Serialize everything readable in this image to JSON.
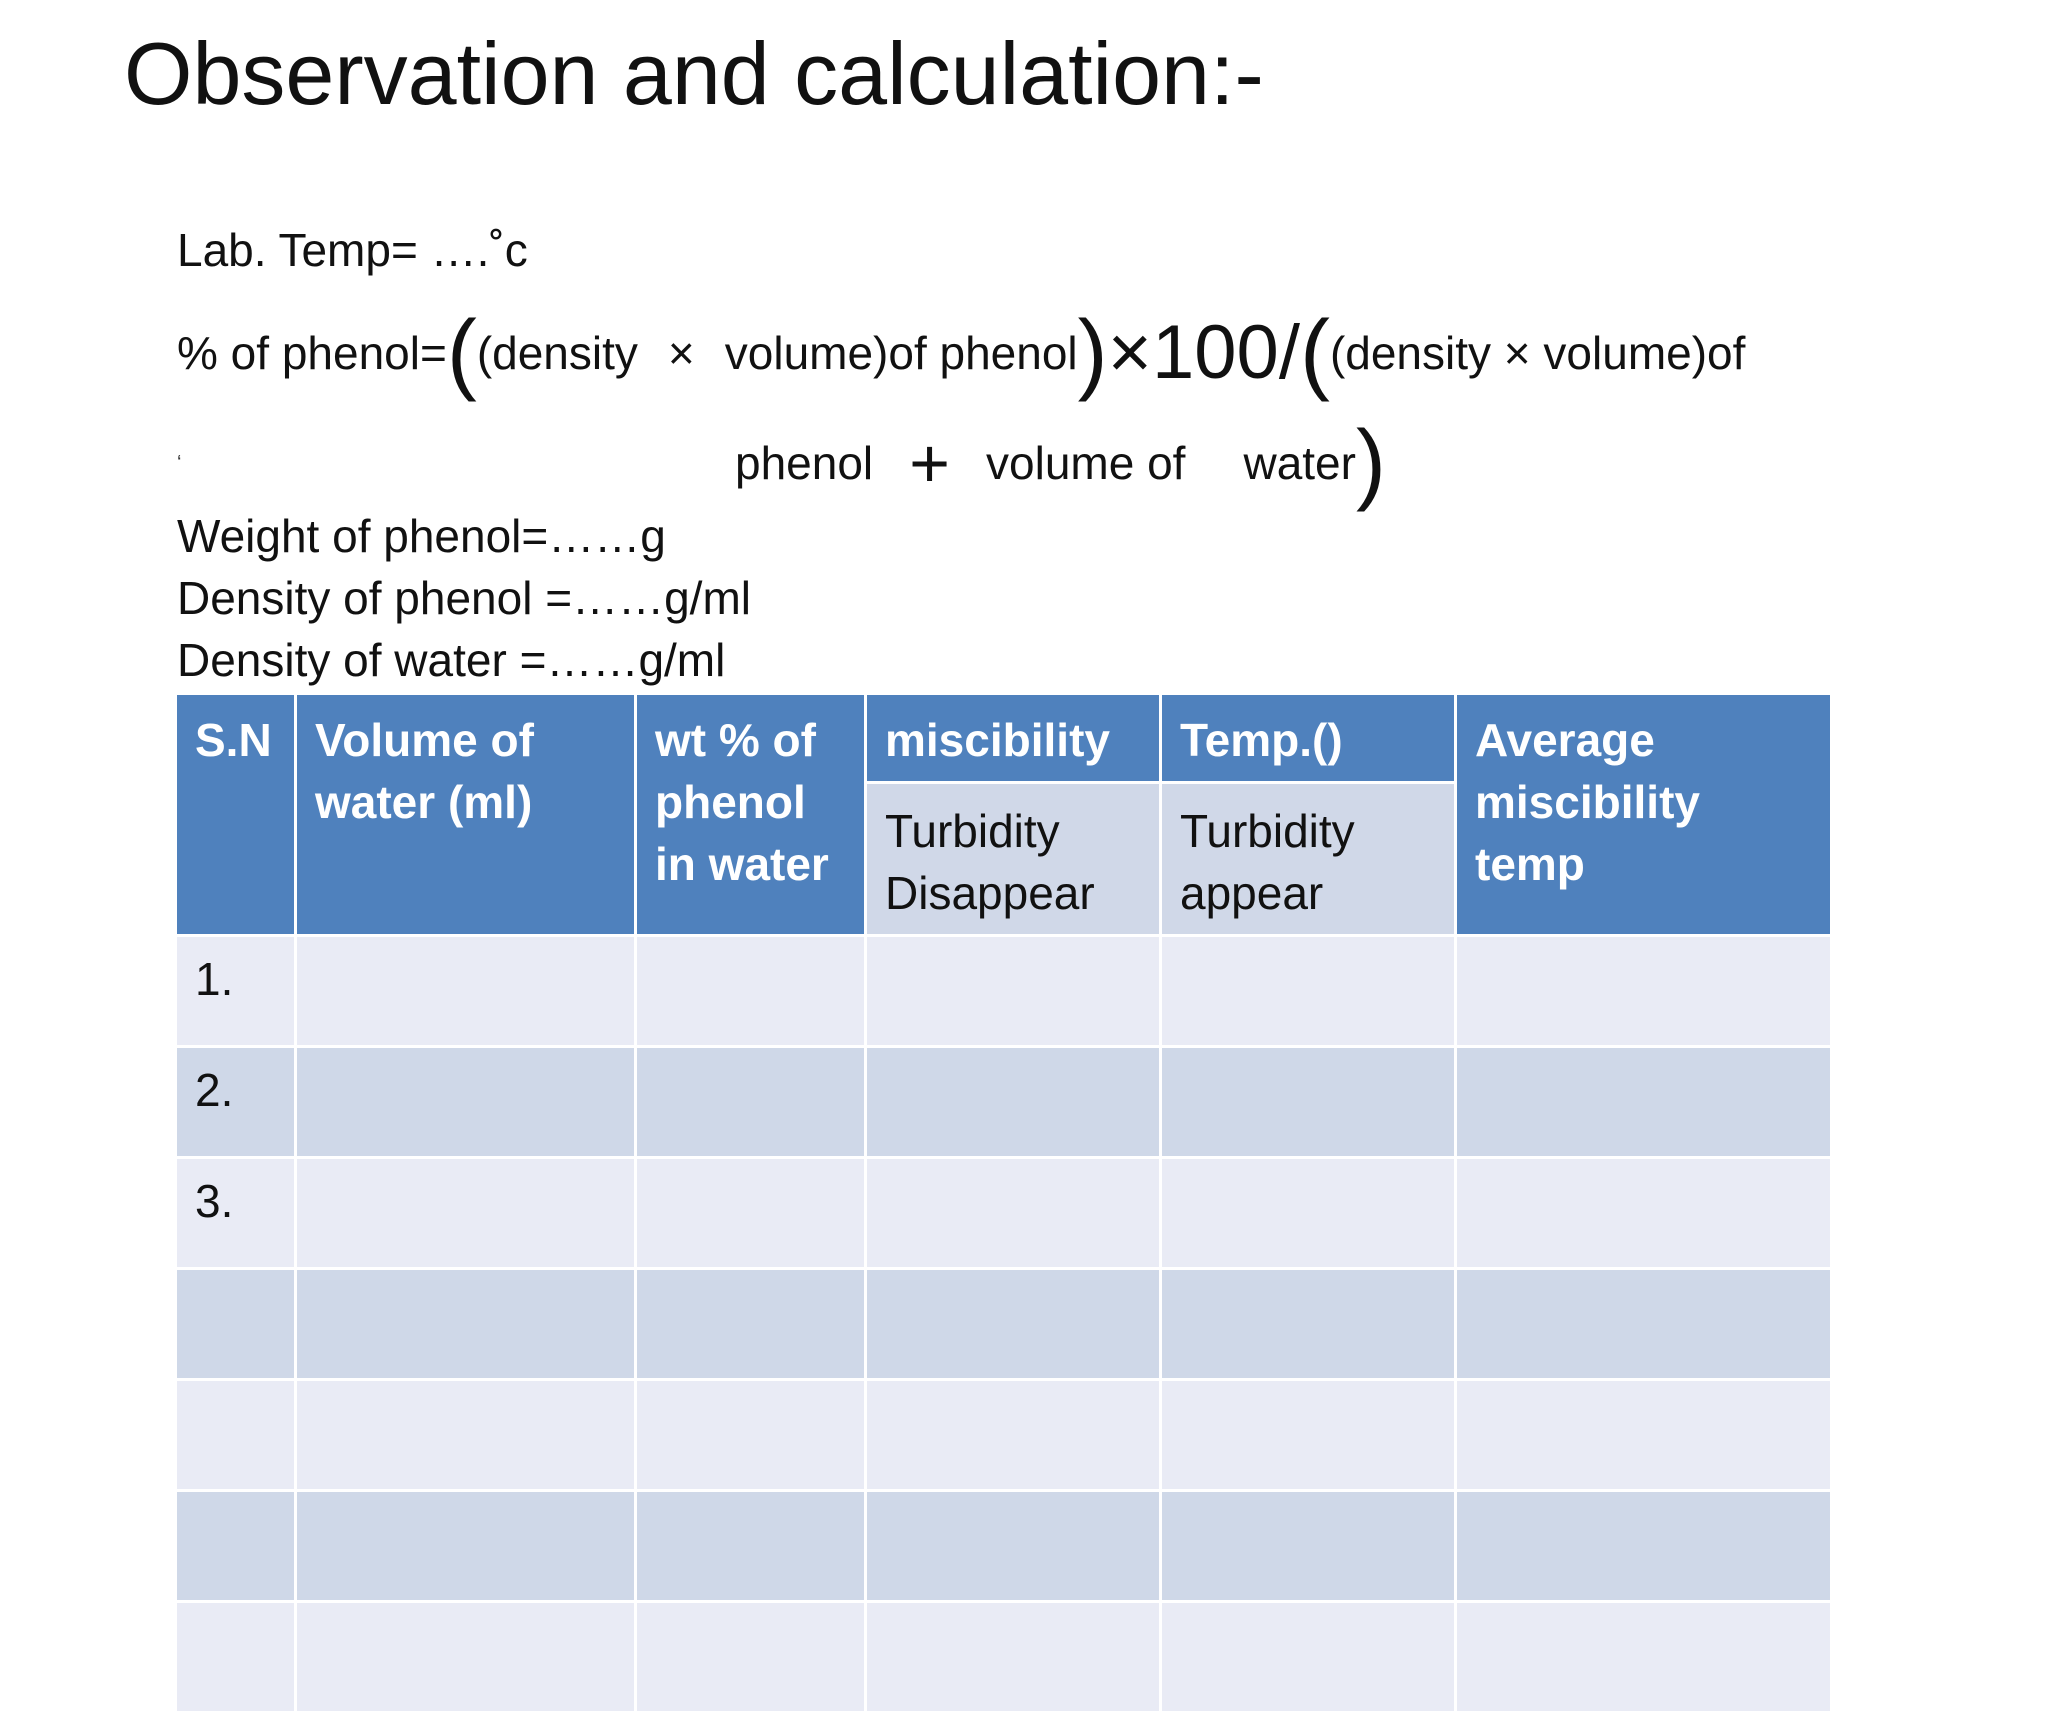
{
  "title": "Observation and calculation:-",
  "lab_temp": "Lab. Temp= ….˚c",
  "formula": {
    "label": "% of phenol=",
    "open_paren": "(",
    "part1": "(density",
    "times1": "×",
    "part2": "volume)of phenol",
    "close_paren1": ")",
    "mult100": "×100/",
    "open_paren2": "(",
    "part3": "(density × volume)of",
    "tick": "‘",
    "part4": "phenol",
    "plus": "+",
    "part5": "volume of",
    "part6": "water",
    "close_paren2": ")"
  },
  "weight_phenol": "Weight of phenol=……g",
  "density_phenol": "Density of phenol =……g/ml",
  "density_water": "Density of water   =……g/ml",
  "table": {
    "headers": {
      "sn": "S.N",
      "volume": "Volume of water (ml)",
      "wt": "wt %  of phenol in water",
      "miscibility": "miscibility",
      "temp": "Temp.()",
      "average": "Average miscibility temp",
      "sub_disappear": "Turbidity Disappear",
      "sub_appear": "Turbidity appear"
    },
    "rows": [
      {
        "sn": "1."
      },
      {
        "sn": "2."
      },
      {
        "sn": "3."
      },
      {
        "sn": ""
      },
      {
        "sn": ""
      },
      {
        "sn": ""
      },
      {
        "sn": ""
      }
    ]
  }
}
